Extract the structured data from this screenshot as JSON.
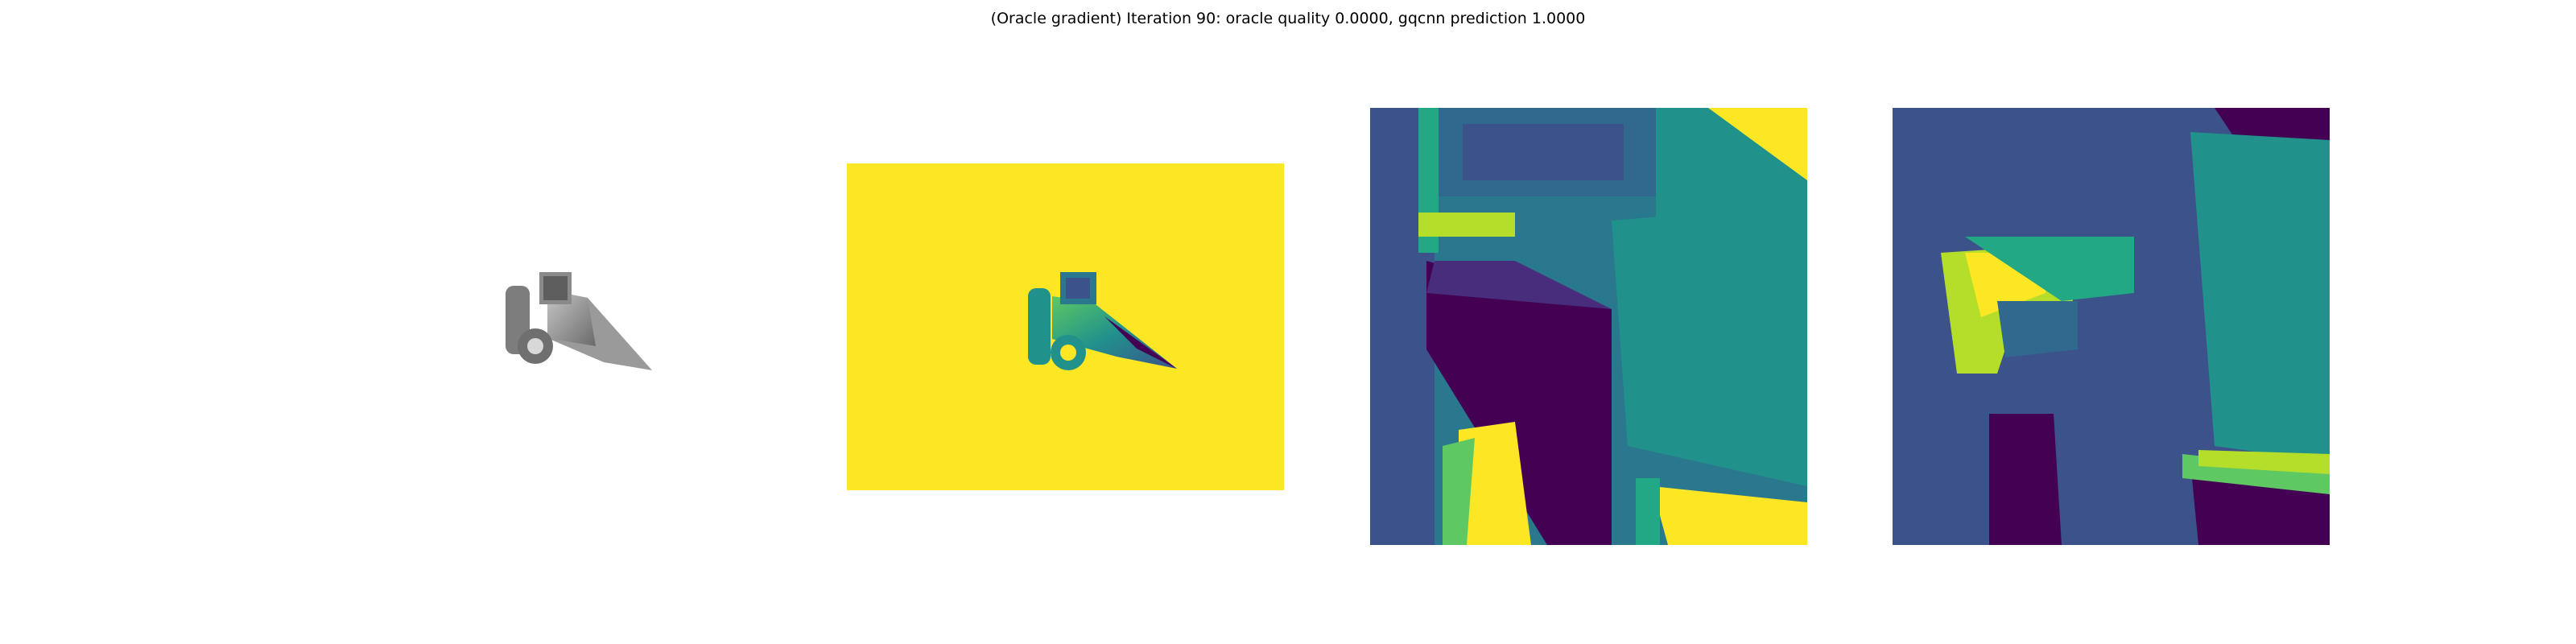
{
  "figure": {
    "title": "(Oracle gradient) Iteration 90: oracle quality 0.0000, gqcnn prediction 1.0000"
  },
  "panels": [
    {
      "name": "rendered-object-gray",
      "colormap": "gray"
    },
    {
      "name": "depth-image-viridis",
      "colormap": "viridis"
    },
    {
      "name": "crop-gradient-1",
      "colormap": "viridis"
    },
    {
      "name": "crop-gradient-2",
      "colormap": "viridis"
    }
  ],
  "colors": {
    "viridis_low": "#440154",
    "viridis_dark": "#3b528b",
    "viridis_mid": "#21918c",
    "viridis_light": "#5ec962",
    "viridis_high": "#fde725"
  }
}
